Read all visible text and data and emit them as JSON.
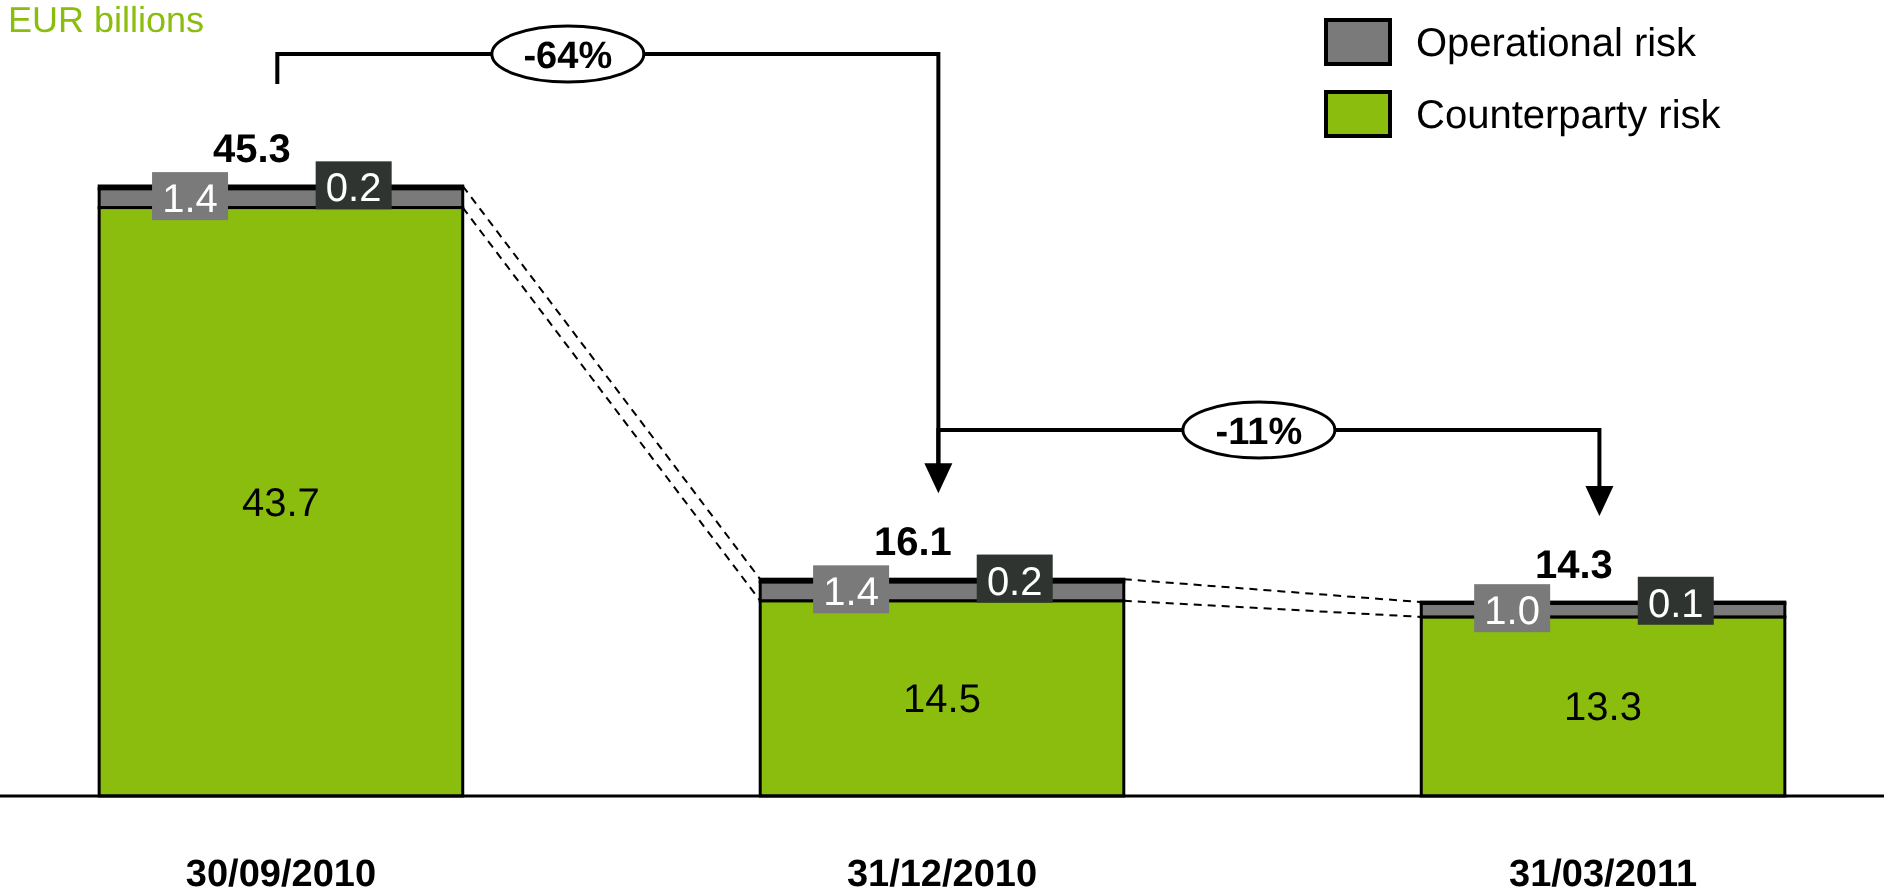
{
  "chart_data": {
    "type": "bar",
    "stacked": true,
    "subtitle": "EUR billions",
    "categories": [
      "30/09/2010",
      "31/12/2010",
      "31/03/2011"
    ],
    "series": [
      {
        "name": "Counterparty risk",
        "color": "#8abd0e",
        "values": [
          43.7,
          14.5,
          13.3
        ],
        "value_labels": [
          "43.7",
          "14.5",
          "13.3"
        ]
      },
      {
        "name": "Operational risk",
        "color": "#7a7a7a",
        "values": [
          1.4,
          1.4,
          1.0
        ],
        "value_labels": [
          "1.4",
          "1.4",
          "1.0"
        ]
      },
      {
        "color": "#2f3430",
        "values": [
          0.2,
          0.2,
          0.1
        ],
        "value_labels": [
          "0.2",
          "0.2",
          "0.1"
        ]
      }
    ],
    "totals": [
      "45.3",
      "16.1",
      "14.3"
    ],
    "annotations": [
      "-64%",
      "-11%"
    ],
    "legend": "top right"
  }
}
